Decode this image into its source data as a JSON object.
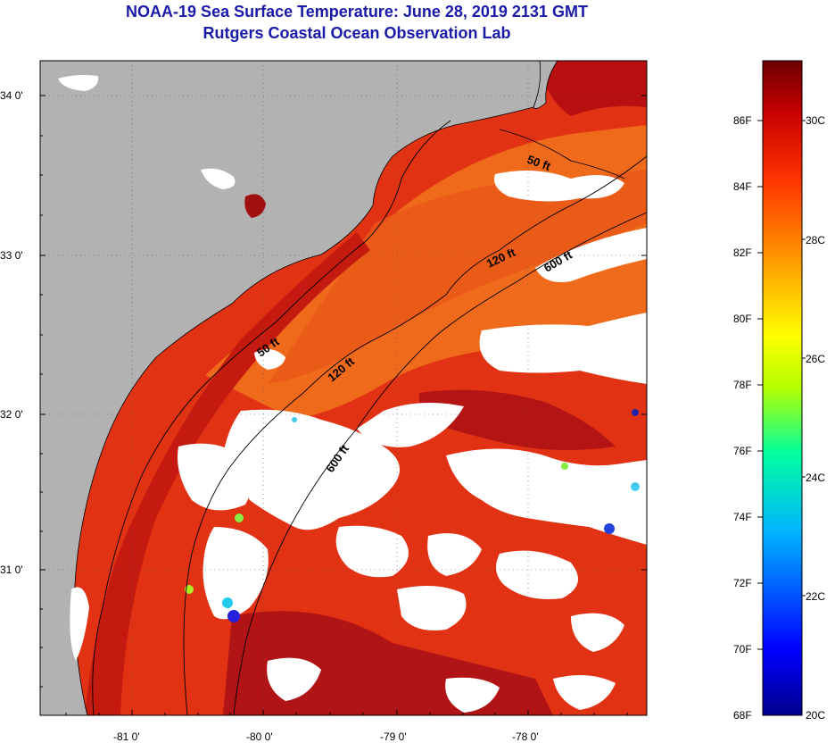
{
  "title": "NOAA-19 Sea Surface Temperature:  June 28, 2019 2131 GMT",
  "subtitle": "Rutgers Coastal Ocean Observation Lab",
  "map": {
    "latitude_labels": [
      "34 0'",
      "33 0'",
      "32 0'",
      "31 0'"
    ],
    "longitude_labels": [
      "-81 0'",
      "-80 0'",
      "-79 0'",
      "-78 0'"
    ],
    "contour_labels": [
      "50 ft",
      "120 ft",
      "600 ft",
      "50 ft",
      "120 ft",
      "600 ft"
    ],
    "colors": {
      "land": "#b2b2b2",
      "cloud": "#ffffff",
      "warm_sst": "#e02810",
      "hot_sst": "#b01010",
      "mid_sst": "#f06818"
    }
  },
  "colorbar": {
    "fahrenheit_labels": [
      "86F",
      "84F",
      "82F",
      "80F",
      "78F",
      "76F",
      "74F",
      "72F",
      "70F",
      "68F"
    ],
    "celsius_labels": [
      "30C",
      "28C",
      "26C",
      "24C",
      "22C",
      "20C"
    ],
    "range_f": [
      68,
      87.8
    ],
    "range_c": [
      20,
      31
    ]
  }
}
